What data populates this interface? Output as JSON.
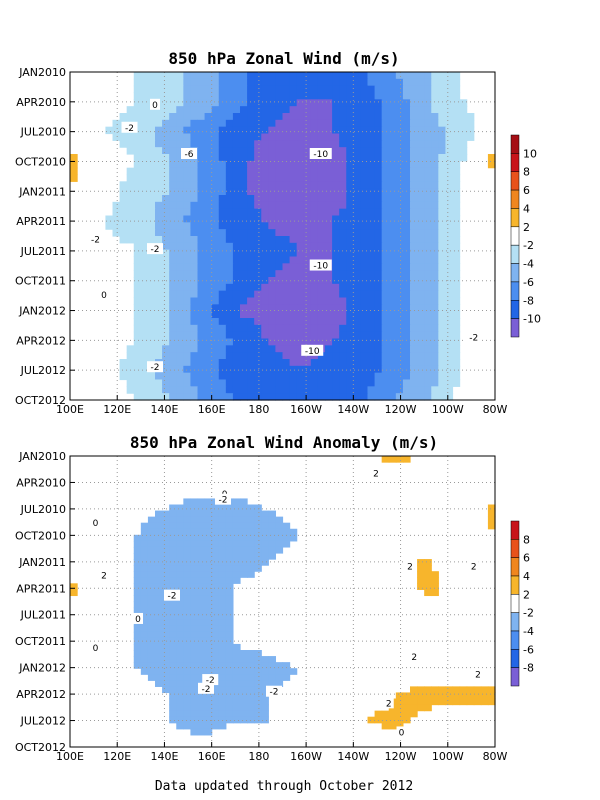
{
  "footer": "Data updated through October 2012",
  "chart_data": [
    {
      "type": "heatmap",
      "title": "850 hPa Zonal Wind (m/s)",
      "x_ticks": [
        "100E",
        "120E",
        "140E",
        "160E",
        "180",
        "160W",
        "140W",
        "120W",
        "100W",
        "80W"
      ],
      "y_ticks": [
        "JAN2010",
        "APR2010",
        "JUL2010",
        "OCT2010",
        "JAN2011",
        "APR2011",
        "JUL2011",
        "OCT2011",
        "JAN2012",
        "APR2012",
        "JUL2012",
        "OCT2012"
      ],
      "colorbar_levels": [
        "10",
        "8",
        "6",
        "4",
        "2",
        "-2",
        "-4",
        "-6",
        "-8",
        "-10"
      ],
      "contour_labels": [
        "0",
        "-2",
        "-6",
        "-10",
        "-10",
        "-10",
        "-2",
        "0",
        "-2",
        "-2",
        "-2"
      ],
      "grid": true,
      "profile_description": "easterlies strongest (< -10 m/s) near 170W-160W in late 2010 and early 2012; weak winds (|u| < 2) near 100E-120E and east of 95W",
      "grid_values": [
        [
          0,
          -1,
          -2,
          -3,
          -5,
          -7,
          -9,
          -10,
          -9,
          -8,
          -6,
          -4,
          -2,
          0
        ],
        [
          0,
          -1,
          -2,
          -3,
          -5,
          -7,
          -9,
          -10,
          -10,
          -9,
          -7,
          -4,
          -2,
          -1
        ],
        [
          0,
          -2,
          -3,
          -5,
          -7,
          -9,
          -10,
          -11,
          -10,
          -9,
          -7,
          -5,
          -3,
          0
        ],
        [
          3,
          0,
          -2,
          -4,
          -6,
          -9,
          -11,
          -12,
          -11,
          -9,
          -7,
          -5,
          -2,
          3
        ],
        [
          2,
          -1,
          -3,
          -4,
          -6,
          -9,
          -11,
          -12,
          -11,
          -9,
          -7,
          -5,
          -2,
          1
        ],
        [
          0,
          -2,
          -3,
          -5,
          -7,
          -9,
          -10,
          -11,
          -10,
          -9,
          -7,
          -5,
          -2,
          0
        ],
        [
          0,
          -1,
          -2,
          -4,
          -6,
          -8,
          -9,
          -10,
          -10,
          -9,
          -7,
          -5,
          -2,
          0
        ],
        [
          1,
          0,
          -2,
          -4,
          -6,
          -8,
          -10,
          -11,
          -10,
          -9,
          -7,
          -5,
          -2,
          1
        ],
        [
          1,
          0,
          -2,
          -4,
          -7,
          -10,
          -11,
          -12,
          -11,
          -9,
          -7,
          -5,
          -2,
          2
        ],
        [
          0,
          -1,
          -2,
          -4,
          -6,
          -8,
          -10,
          -11,
          -10,
          -9,
          -7,
          -5,
          -2,
          0
        ],
        [
          0,
          -1,
          -3,
          -5,
          -7,
          -9,
          -9,
          -10,
          -9,
          -9,
          -7,
          -5,
          -2,
          0
        ],
        [
          0,
          -1,
          -2,
          -4,
          -6,
          -8,
          -9,
          -9,
          -9,
          -8,
          -6,
          -4,
          -1,
          0
        ]
      ]
    },
    {
      "type": "heatmap",
      "title": "850 hPa Zonal Wind Anomaly (m/s)",
      "x_ticks": [
        "100E",
        "120E",
        "140E",
        "160E",
        "180",
        "160W",
        "140W",
        "120W",
        "100W",
        "80W"
      ],
      "y_ticks": [
        "JAN2010",
        "APR2010",
        "JUL2010",
        "OCT2010",
        "JAN2011",
        "APR2011",
        "JUL2011",
        "OCT2011",
        "JAN2012",
        "APR2012",
        "JUL2012",
        "OCT2012"
      ],
      "colorbar_levels": [
        "8",
        "6",
        "4",
        "2",
        "-2",
        "-4",
        "-6",
        "-8"
      ],
      "contour_labels": [
        "2",
        "-0",
        "-2",
        "0",
        "2",
        "2",
        "2",
        "-2",
        "0",
        "0",
        "-2",
        "2",
        "-2",
        "-2",
        "2",
        "2",
        "0"
      ],
      "grid": true,
      "profile_description": "easterly anomalies (-2 to -6 m/s) centered near 160E-180 from mid-2010 to mid-2012; westerly anomalies (> 2) east of 130W in 2012",
      "grid_values": [
        [
          0,
          0,
          0,
          0,
          0,
          0,
          0,
          0,
          0,
          1,
          3,
          1,
          0,
          1
        ],
        [
          0,
          0,
          0,
          0,
          -1,
          -1,
          0,
          0,
          0,
          0,
          0,
          0,
          0,
          0
        ],
        [
          0,
          0,
          -1,
          -2,
          -3,
          -3,
          -2,
          -1,
          0,
          0,
          0,
          0,
          0,
          3
        ],
        [
          0,
          0,
          -2,
          -4,
          -4,
          -4,
          -3,
          -2,
          -1,
          0,
          0,
          0,
          0,
          2
        ],
        [
          0,
          0,
          -2,
          -3,
          -4,
          -3,
          -2,
          -1,
          0,
          0,
          2,
          2,
          0,
          0
        ],
        [
          3,
          0,
          -2,
          -3,
          -3,
          -2,
          -1,
          0,
          0,
          0,
          0,
          3,
          0,
          0
        ],
        [
          0,
          0,
          -2,
          -3,
          -3,
          -2,
          -1,
          0,
          0,
          0,
          0,
          0,
          0,
          0
        ],
        [
          0,
          0,
          -2,
          -3,
          -3,
          -2,
          -1,
          0,
          0,
          0,
          0,
          0,
          0,
          0
        ],
        [
          0,
          -1,
          -2,
          -3,
          -4,
          -3,
          -3,
          -2,
          0,
          0,
          0,
          0,
          0,
          0
        ],
        [
          0,
          0,
          -1,
          -2,
          -3,
          -2,
          -2,
          -1,
          0,
          0,
          2,
          3,
          3,
          3
        ],
        [
          0,
          0,
          -1,
          -2,
          -3,
          -2,
          -2,
          0,
          0,
          2,
          3,
          1,
          0,
          0
        ],
        [
          0,
          0,
          0,
          -1,
          -1,
          -1,
          0,
          0,
          0,
          0,
          0,
          0,
          0,
          0
        ]
      ]
    }
  ]
}
